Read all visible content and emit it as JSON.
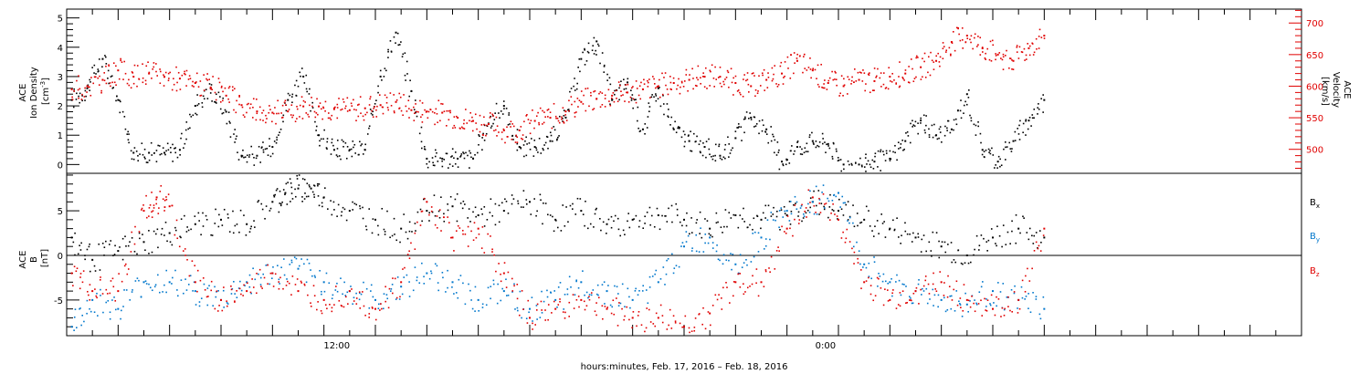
{
  "chart_data": [
    {
      "type": "scatter",
      "panel": "solar-wind",
      "x_range_hours": [
        0,
        48
      ],
      "ylabel": "ACE\nIon Density\n[cm-3]",
      "ylim": [
        -0.3,
        5.3
      ],
      "y_ticks": [
        0,
        1,
        2,
        3,
        4,
        5
      ],
      "y2label": "ACE\nVelocity\n[km/s]",
      "y2lim": [
        462,
        722
      ],
      "y2_ticks": [
        500,
        550,
        600,
        650,
        700
      ],
      "grid": false,
      "series": [
        {
          "name": "ACE Ion Density",
          "color": "#000000",
          "axis": "left",
          "x": [
            0.2,
            0.8,
            1.4,
            2.0,
            2.6,
            3.2,
            3.8,
            4.4,
            5.0,
            5.6,
            6.2,
            6.8,
            7.4,
            8.0,
            8.6,
            9.2,
            9.8,
            10.4,
            11.0,
            11.6,
            12.2,
            12.8,
            13.4,
            14.0,
            14.6,
            15.2,
            15.8,
            16.4,
            17.0,
            17.6,
            18.2,
            18.8,
            19.4,
            20.0,
            20.6,
            21.2,
            21.8,
            22.4,
            23.0,
            23.6,
            24.2,
            24.8,
            25.4,
            26.0,
            26.6,
            27.2,
            27.8,
            28.4,
            29.0,
            29.6,
            30.2,
            30.8,
            31.4,
            32.0,
            32.6,
            33.2,
            33.8,
            34.4,
            35.0,
            35.6,
            36.2,
            36.8,
            37.4,
            38.0
          ],
          "y": [
            2.2,
            2.6,
            3.6,
            2.2,
            0.4,
            0.4,
            0.4,
            0.5,
            2.0,
            2.6,
            1.8,
            0.3,
            0.3,
            0.6,
            2.2,
            3.0,
            1.0,
            0.5,
            0.5,
            0.5,
            3.0,
            4.5,
            2.5,
            0.2,
            0.2,
            0.2,
            0.2,
            1.4,
            2.0,
            0.6,
            0.6,
            0.8,
            1.6,
            3.6,
            4.2,
            2.2,
            2.8,
            1.2,
            2.6,
            1.2,
            0.8,
            0.6,
            0.3,
            0.9,
            1.6,
            1.2,
            0.1,
            0.6,
            0.8,
            0.7,
            0.0,
            0.0,
            0.1,
            0.2,
            0.8,
            1.5,
            1.0,
            1.2,
            2.4,
            0.5,
            0.1,
            0.8,
            1.5,
            2.2
          ]
        },
        {
          "name": "ACE Velocity",
          "color": "#e00000",
          "axis": "right",
          "x": [
            0.2,
            0.8,
            1.4,
            2.0,
            2.6,
            3.2,
            3.8,
            4.4,
            5.0,
            5.6,
            6.2,
            6.8,
            7.4,
            8.0,
            8.6,
            9.2,
            9.8,
            10.4,
            11.0,
            11.6,
            12.2,
            12.8,
            13.4,
            14.0,
            14.6,
            15.2,
            15.8,
            16.4,
            17.0,
            17.6,
            18.2,
            18.8,
            19.4,
            20.0,
            20.6,
            21.2,
            21.8,
            22.4,
            23.0,
            23.6,
            24.2,
            24.8,
            25.4,
            26.0,
            26.6,
            27.2,
            27.8,
            28.4,
            29.0,
            29.6,
            30.2,
            30.8,
            31.4,
            32.0,
            32.6,
            33.2,
            33.8,
            34.4,
            35.0,
            35.6,
            36.2,
            36.8,
            37.4,
            38.0
          ],
          "y": [
            595,
            600,
            610,
            625,
            615,
            620,
            615,
            612,
            605,
            598,
            585,
            570,
            560,
            558,
            560,
            568,
            568,
            565,
            562,
            565,
            570,
            575,
            562,
            560,
            558,
            550,
            545,
            540,
            530,
            530,
            545,
            550,
            560,
            575,
            580,
            585,
            590,
            595,
            600,
            605,
            610,
            615,
            615,
            605,
            600,
            610,
            620,
            640,
            625,
            605,
            600,
            610,
            608,
            615,
            620,
            630,
            640,
            670,
            680,
            660,
            650,
            640,
            660,
            680
          ]
        }
      ]
    },
    {
      "type": "scatter",
      "panel": "magnetic-field",
      "x_range_hours": [
        0,
        48
      ],
      "ylabel": "ACE\nB\n[nT]",
      "ylim": [
        -9,
        9.2
      ],
      "y_ticks": [
        -5,
        0,
        5
      ],
      "zero_line": true,
      "xlabel": "hours:minutes, Feb. 17, 2016 – Feb. 18, 2016",
      "x_tick_labels": [
        {
          "hour": 10.5,
          "label": "12:00"
        },
        {
          "hour": 29.5,
          "label": "0:00"
        }
      ],
      "legend_placement": "right",
      "series": [
        {
          "name": "Bx",
          "label_main": "B",
          "label_sub": "x",
          "color": "#000000",
          "x": [
            0.2,
            1.0,
            2.0,
            3.0,
            4.0,
            5.0,
            6.0,
            7.0,
            8.0,
            8.5,
            9.0,
            9.5,
            10.0,
            11.0,
            12.0,
            13.0,
            14.0,
            15.0,
            16.0,
            17.0,
            18.0,
            19.0,
            20.0,
            21.0,
            22.0,
            23.0,
            24.0,
            25.0,
            26.0,
            27.0,
            28.0,
            29.0,
            30.0,
            31.0,
            32.0,
            33.0,
            34.0,
            35.0,
            36.0,
            37.0,
            38.0
          ],
          "y": [
            2.0,
            -0.5,
            0.5,
            1.5,
            2.5,
            3.5,
            4.0,
            3.5,
            6.0,
            7.0,
            7.5,
            7.5,
            6.5,
            5.0,
            4.0,
            3.0,
            5.0,
            5.5,
            4.5,
            5.0,
            6.0,
            4.0,
            5.0,
            3.5,
            4.0,
            4.5,
            4.0,
            3.0,
            4.5,
            4.0,
            4.5,
            6.0,
            5.0,
            4.0,
            3.0,
            2.0,
            1.0,
            0.0,
            2.0,
            3.0,
            2.0
          ]
        },
        {
          "name": "By",
          "label_main": "B",
          "label_sub": "y",
          "color": "#0077cc",
          "x": [
            0.2,
            1.0,
            2.0,
            3.0,
            4.0,
            5.0,
            6.0,
            7.0,
            8.0,
            9.0,
            10.0,
            11.0,
            12.0,
            13.0,
            14.0,
            15.0,
            16.0,
            17.0,
            18.0,
            19.0,
            20.0,
            21.0,
            22.0,
            23.0,
            24.0,
            25.0,
            26.0,
            27.0,
            28.0,
            29.0,
            30.0,
            31.0,
            32.0,
            33.0,
            34.0,
            35.0,
            36.0,
            37.0,
            38.0
          ],
          "y": [
            -8.0,
            -5.0,
            -6.0,
            -3.0,
            -3.0,
            -4.0,
            -5.0,
            -3.0,
            -2.0,
            -1.5,
            -3.0,
            -4.0,
            -5.0,
            -3.5,
            -2.0,
            -3.0,
            -5.0,
            -4.0,
            -6.0,
            -5.0,
            -3.0,
            -4.0,
            -5.0,
            -3.0,
            1.0,
            2.0,
            -1.0,
            2.0,
            5.0,
            6.0,
            7.0,
            -1.0,
            -3.0,
            -4.0,
            -5.0,
            -5.5,
            -4.0,
            -5.0,
            -6.0
          ]
        },
        {
          "name": "Bz",
          "label_main": "B",
          "label_sub": "z",
          "color": "#e00000",
          "x": [
            0.2,
            1.0,
            2.0,
            3.0,
            3.5,
            4.0,
            5.0,
            6.0,
            7.0,
            8.0,
            9.0,
            10.0,
            11.0,
            12.0,
            13.0,
            14.0,
            15.0,
            16.0,
            17.0,
            18.0,
            19.0,
            20.0,
            21.0,
            22.0,
            23.0,
            24.0,
            25.0,
            26.0,
            27.0,
            28.0,
            29.0,
            30.0,
            31.0,
            32.0,
            33.0,
            34.0,
            35.0,
            36.0,
            37.0,
            38.0
          ],
          "y": [
            -2.0,
            -4.0,
            -4.0,
            5.0,
            6.5,
            5.5,
            -3.0,
            -5.0,
            -4.0,
            -2.0,
            -4.0,
            -5.0,
            -4.0,
            -6.0,
            -3.0,
            6.0,
            2.0,
            3.0,
            -2.0,
            -7.0,
            -6.0,
            -5.0,
            -6.0,
            -7.0,
            -7.0,
            -8.0,
            -6.5,
            -3.0,
            -3.0,
            3.0,
            6.5,
            4.0,
            -3.0,
            -5.0,
            -4.0,
            -3.0,
            -5.0,
            -6.0,
            -5.0,
            3.0
          ]
        }
      ]
    }
  ]
}
